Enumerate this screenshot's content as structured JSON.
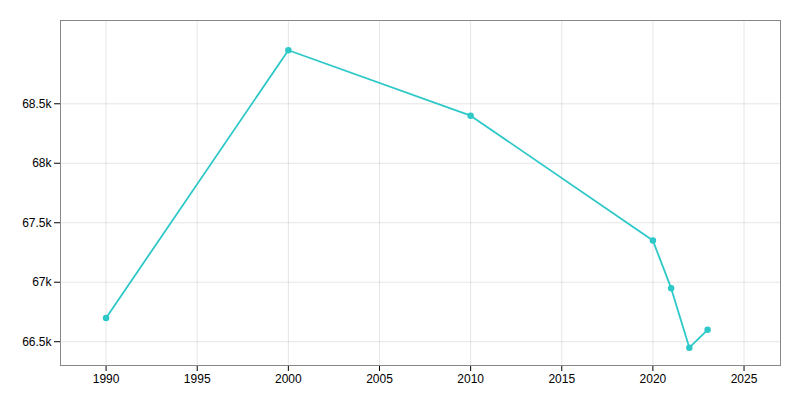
{
  "chart_data": {
    "type": "line",
    "x": [
      1990,
      2000,
      2010,
      2020,
      2021,
      2022,
      2023
    ],
    "values": [
      66700,
      68950,
      68400,
      67350,
      66950,
      66450,
      66600
    ],
    "color": "#2ec8c8",
    "marker": "circle",
    "xlim": [
      1987.5,
      2027
    ],
    "ylim": [
      66300,
      69200
    ],
    "xticks": [
      1990,
      1995,
      2000,
      2005,
      2010,
      2015,
      2020,
      2025
    ],
    "yticks": [
      {
        "value": 66500,
        "label": "66.5k"
      },
      {
        "value": 67000,
        "label": "67k"
      },
      {
        "value": 67500,
        "label": "67.5k"
      },
      {
        "value": 68000,
        "label": "68k"
      },
      {
        "value": 68500,
        "label": "68.5k"
      }
    ],
    "grid": true
  }
}
